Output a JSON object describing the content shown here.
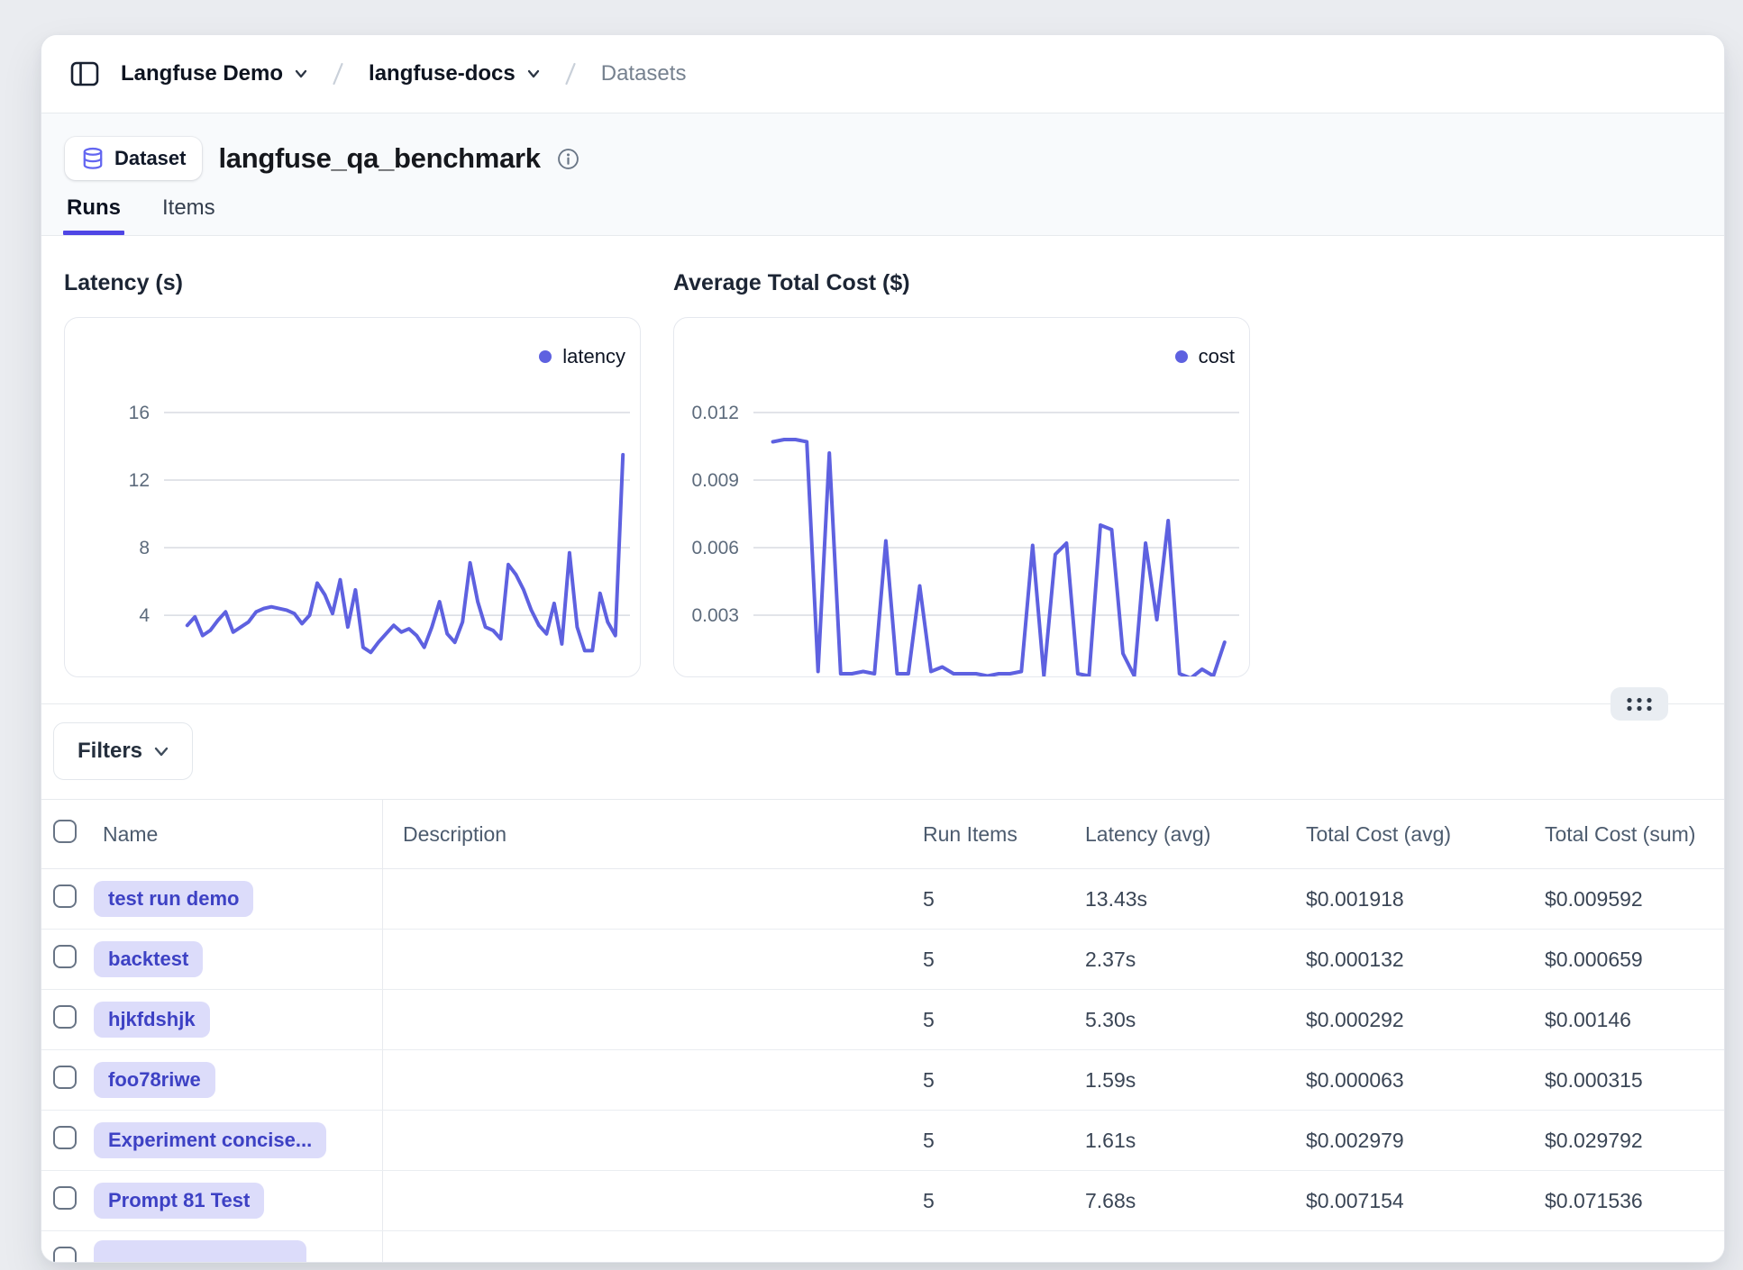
{
  "theme": {
    "accent": "#4f46e5",
    "line_color": "#5e61e0",
    "pill_bg": "#dcdcfa",
    "pill_text": "#3d41c4",
    "grid_color": "#d8dce2",
    "icon_indigo": "#6366f1"
  },
  "breadcrumb": {
    "project": "Langfuse Demo",
    "env": "langfuse-docs",
    "page": "Datasets"
  },
  "header": {
    "badge": "Dataset",
    "title": "langfuse_qa_benchmark"
  },
  "tabs": [
    {
      "label": "Runs",
      "active": true
    },
    {
      "label": "Items",
      "active": false
    }
  ],
  "filters": {
    "button": "Filters"
  },
  "chart_data": [
    {
      "type": "line",
      "title": "Latency (s)",
      "legend_label": "latency",
      "legend_position": "top-right",
      "grid": true,
      "yticks": [
        16,
        12,
        8,
        4
      ],
      "ylim": [
        0.27,
        21.6
      ],
      "values": [
        3.4,
        3.9,
        2.8,
        3.1,
        3.7,
        4.2,
        3.0,
        3.3,
        3.6,
        4.2,
        4.4,
        4.5,
        4.4,
        4.3,
        4.1,
        3.5,
        4.0,
        5.9,
        5.2,
        4.1,
        6.1,
        3.3,
        5.5,
        2.1,
        1.8,
        2.4,
        2.9,
        3.4,
        3.0,
        3.2,
        2.8,
        2.1,
        3.3,
        4.8,
        2.9,
        2.4,
        3.6,
        7.1,
        4.8,
        3.3,
        3.1,
        2.6,
        7.0,
        6.4,
        5.5,
        4.3,
        3.4,
        2.9,
        4.7,
        2.3,
        7.7,
        3.3,
        1.9,
        1.9,
        5.3,
        3.6,
        2.8,
        13.5
      ]
    },
    {
      "type": "line",
      "title": "Average Total Cost ($)",
      "legend_label": "cost",
      "legend_position": "top-right",
      "grid": true,
      "yticks": [
        0.012,
        0.009,
        0.006,
        0.003
      ],
      "ylim": [
        0.0002,
        0.0162
      ],
      "values": [
        0.0107,
        0.0108,
        0.0108,
        0.0107,
        0.0005,
        0.0102,
        0.0004,
        0.0004,
        0.0005,
        0.0004,
        0.0063,
        0.0004,
        0.0004,
        0.0043,
        0.0005,
        0.0007,
        0.0004,
        0.0004,
        0.0004,
        0.0003,
        0.0004,
        0.0004,
        0.0005,
        0.0061,
        0.0003,
        0.0057,
        0.0062,
        0.0004,
        0.0003,
        0.007,
        0.0068,
        0.0013,
        0.0003,
        0.0062,
        0.0028,
        0.0072,
        0.0004,
        0.0002,
        0.0006,
        0.0003,
        0.0018
      ]
    }
  ],
  "table": {
    "columns": {
      "name": "Name",
      "description": "Description",
      "run_items": "Run Items",
      "latency_avg": "Latency (avg)",
      "total_cost_avg": "Total Cost (avg)",
      "total_cost_sum": "Total Cost (sum)"
    },
    "rows": [
      {
        "name": "test run demo",
        "description": "",
        "run_items": "5",
        "latency_avg": "13.43s",
        "total_cost_avg": "$0.001918",
        "total_cost_sum": "$0.009592"
      },
      {
        "name": "backtest",
        "description": "",
        "run_items": "5",
        "latency_avg": "2.37s",
        "total_cost_avg": "$0.000132",
        "total_cost_sum": "$0.000659"
      },
      {
        "name": "hjkfdshjk",
        "description": "",
        "run_items": "5",
        "latency_avg": "5.30s",
        "total_cost_avg": "$0.000292",
        "total_cost_sum": "$0.00146"
      },
      {
        "name": "foo78riwe",
        "description": "",
        "run_items": "5",
        "latency_avg": "1.59s",
        "total_cost_avg": "$0.000063",
        "total_cost_sum": "$0.000315"
      },
      {
        "name": "Experiment concise...",
        "description": "",
        "run_items": "5",
        "latency_avg": "1.61s",
        "total_cost_avg": "$0.002979",
        "total_cost_sum": "$0.029792"
      },
      {
        "name": "Prompt 81 Test",
        "description": "",
        "run_items": "5",
        "latency_avg": "7.68s",
        "total_cost_avg": "$0.007154",
        "total_cost_sum": "$0.071536"
      },
      {
        "name": "",
        "description": "",
        "run_items": "",
        "latency_avg": "",
        "total_cost_avg": "",
        "total_cost_sum": ""
      }
    ]
  }
}
